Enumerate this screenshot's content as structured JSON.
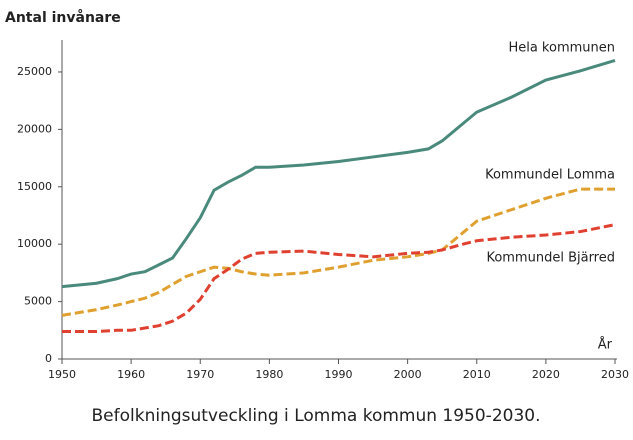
{
  "chart_data": {
    "type": "line",
    "title": "Antal invånare",
    "caption": "Befolkningsutveckling i Lomma kommun 1950-2030.",
    "x_label": "År",
    "x": [
      1950,
      1955,
      1958,
      1960,
      1962,
      1964,
      1966,
      1968,
      1970,
      1972,
      1974,
      1976,
      1978,
      1980,
      1985,
      1990,
      1995,
      2000,
      2003,
      2005,
      2008,
      2010,
      2015,
      2020,
      2025,
      2030
    ],
    "series": [
      {
        "name": "Hela kommunen",
        "color": "#4a8a7c",
        "dashed": false,
        "values": [
          6300,
          6600,
          7000,
          7400,
          7600,
          8200,
          8800,
          10500,
          12300,
          14700,
          15400,
          16000,
          16700,
          16700,
          16900,
          17200,
          17600,
          18000,
          18300,
          19000,
          20500,
          21500,
          22800,
          24300,
          25100,
          26000
        ]
      },
      {
        "name": "Kommundel Lomma",
        "color": "#e0a030",
        "dashed": true,
        "values": [
          3800,
          4300,
          4700,
          5000,
          5300,
          5800,
          6500,
          7200,
          7600,
          8000,
          7900,
          7600,
          7400,
          7300,
          7500,
          8000,
          8600,
          8900,
          9200,
          9500,
          11000,
          12000,
          13000,
          14000,
          14800,
          14800
        ]
      },
      {
        "name": "Kommundel Bjärred",
        "color": "#e04030",
        "dashed": true,
        "values": [
          2400,
          2400,
          2500,
          2500,
          2700,
          2900,
          3300,
          4000,
          5200,
          7000,
          7800,
          8700,
          9200,
          9300,
          9400,
          9100,
          8900,
          9200,
          9300,
          9500,
          10000,
          10300,
          10600,
          10800,
          11100,
          11700
        ]
      }
    ],
    "xlim": [
      1950,
      2030
    ],
    "xticks": [
      1950,
      1960,
      1970,
      1980,
      1990,
      2000,
      2010,
      2020,
      2030
    ],
    "ylim": [
      0,
      27000
    ],
    "yticks": [
      0,
      5000,
      10000,
      15000,
      20000,
      25000
    ]
  }
}
